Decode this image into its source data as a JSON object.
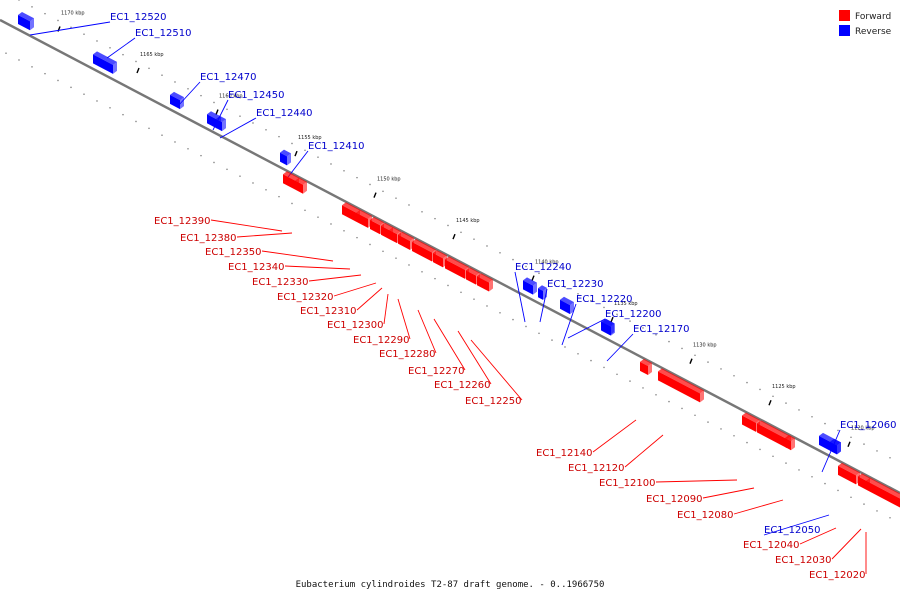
{
  "title": "Eubacterium cylindroides T2-87 draft genome. - 0..1966750",
  "colors": {
    "forward": "#ff0000",
    "reverse": "#0000ff",
    "forward_label": "#cc0000",
    "reverse_label": "#0000cc"
  },
  "legend": [
    {
      "name": "Forward",
      "color": "#ff0000"
    },
    {
      "name": "Reverse",
      "color": "#0000ff"
    }
  ],
  "scale": [
    {
      "label": "1170 kbp",
      "kbp": 1170
    },
    {
      "label": "1165 kbp",
      "kbp": 1165
    },
    {
      "label": "1160 kbp",
      "kbp": 1160
    },
    {
      "label": "1155 kbp",
      "kbp": 1155
    },
    {
      "label": "1150 kbp",
      "kbp": 1150
    },
    {
      "label": "1145 kbp",
      "kbp": 1145
    },
    {
      "label": "1140 kbp",
      "kbp": 1140
    },
    {
      "label": "1135 kbp",
      "kbp": 1135
    },
    {
      "label": "1130 kbp",
      "kbp": 1130
    },
    {
      "label": "1125 kbp",
      "kbp": 1125
    },
    {
      "label": "1120 kbp",
      "kbp": 1120
    }
  ],
  "genes": [
    {
      "name": "EC1_12520",
      "strand": "reverse"
    },
    {
      "name": "EC1_12510",
      "strand": "reverse"
    },
    {
      "name": "EC1_12470",
      "strand": "reverse"
    },
    {
      "name": "EC1_12450",
      "strand": "reverse"
    },
    {
      "name": "EC1_12440",
      "strand": "reverse"
    },
    {
      "name": "EC1_12410",
      "strand": "reverse"
    },
    {
      "name": "EC1_12390",
      "strand": "forward"
    },
    {
      "name": "EC1_12380",
      "strand": "forward"
    },
    {
      "name": "EC1_12350",
      "strand": "forward"
    },
    {
      "name": "EC1_12340",
      "strand": "forward"
    },
    {
      "name": "EC1_12330",
      "strand": "forward"
    },
    {
      "name": "EC1_12320",
      "strand": "forward"
    },
    {
      "name": "EC1_12310",
      "strand": "forward"
    },
    {
      "name": "EC1_12300",
      "strand": "forward"
    },
    {
      "name": "EC1_12290",
      "strand": "forward"
    },
    {
      "name": "EC1_12280",
      "strand": "forward"
    },
    {
      "name": "EC1_12270",
      "strand": "forward"
    },
    {
      "name": "EC1_12260",
      "strand": "forward"
    },
    {
      "name": "EC1_12250",
      "strand": "forward"
    },
    {
      "name": "EC1_12240",
      "strand": "reverse"
    },
    {
      "name": "EC1_12230",
      "strand": "reverse"
    },
    {
      "name": "EC1_12220",
      "strand": "reverse"
    },
    {
      "name": "EC1_12200",
      "strand": "reverse"
    },
    {
      "name": "EC1_12170",
      "strand": "reverse"
    },
    {
      "name": "EC1_12140",
      "strand": "forward"
    },
    {
      "name": "EC1_12120",
      "strand": "forward"
    },
    {
      "name": "EC1_12100",
      "strand": "forward"
    },
    {
      "name": "EC1_12090",
      "strand": "forward"
    },
    {
      "name": "EC1_12080",
      "strand": "forward"
    },
    {
      "name": "EC1_12060",
      "strand": "reverse"
    },
    {
      "name": "EC1_12050",
      "strand": "reverse"
    },
    {
      "name": "EC1_12040",
      "strand": "forward"
    },
    {
      "name": "EC1_12030",
      "strand": "forward"
    },
    {
      "name": "EC1_12020",
      "strand": "forward"
    }
  ]
}
